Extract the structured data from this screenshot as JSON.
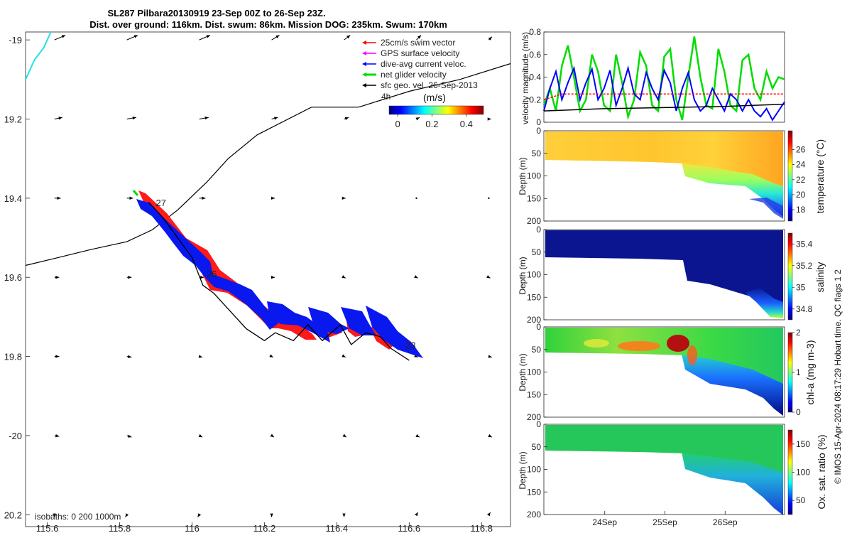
{
  "title": {
    "line1": "SL287 Pilbara20130919 23-Sep 00Z to 26-Sep 23Z.",
    "line2": "Dist. over ground: 116km. Dist. swum: 86km. Mission DOG: 235km. Swum: 170km"
  },
  "copyright": "© IMOS 15-Apr-2024 08:17:29 Hobart time. QC flags 1  2",
  "chart_data": [
    {
      "type": "scatter",
      "name": "glider-track-map",
      "xlim": [
        115.54,
        116.88
      ],
      "ylim": [
        -20.23,
        -18.98
      ],
      "x_ticks": [
        115.6,
        115.8,
        116,
        116.2,
        116.4,
        116.6,
        116.8
      ],
      "x_tick_labels": [
        "115.6",
        "115.8",
        "116",
        "116.2",
        "116.4",
        "116.6",
        "116.8"
      ],
      "y_ticks": [
        -19.0,
        -19.2,
        -19.4,
        -19.6,
        -19.8,
        -20.0,
        -20.2
      ],
      "y_tick_labels": [
        "-19",
        "19.2",
        "19.4",
        "19.6",
        "19.8",
        "-20",
        "20.2"
      ],
      "legend": [
        {
          "label": "25cm/s swim vector",
          "color": "#ff0000"
        },
        {
          "label": "GPS surface velocity",
          "color": "#ff00ff"
        },
        {
          "label": "dive-avg current veloc.",
          "color": "#0000ff"
        },
        {
          "label": "net glider velocity",
          "color": "#00dd00"
        },
        {
          "label": "sfc geo. vel. 26-Sep-2013",
          "color": "#000000"
        }
      ],
      "scale_label": "4h",
      "colorbar": {
        "label": "(m/s)",
        "ticks": [
          0,
          0.2,
          0.4
        ],
        "tick_labels": [
          "0",
          "0.2",
          "0.4"
        ],
        "range": [
          -0.05,
          0.5
        ]
      },
      "day_labels": [
        {
          "text": "27",
          "lon": 115.9,
          "lat": -19.42
        },
        {
          "text": "26",
          "lon": 116.04,
          "lat": -19.6
        },
        {
          "text": "23",
          "lon": 116.59,
          "lat": -19.78
        }
      ],
      "isobath_label": "isobaths: 0   200  1000m",
      "isobath": {
        "lon": [
          115.54,
          115.63,
          115.72,
          115.82,
          115.89,
          115.96,
          116.04,
          116.1,
          116.18,
          116.33,
          116.46,
          116.6,
          116.74,
          116.88
        ],
        "lat": [
          -19.57,
          -19.55,
          -19.53,
          -19.51,
          -19.48,
          -19.43,
          -19.36,
          -19.3,
          -19.24,
          -19.17,
          -19.17,
          -19.13,
          -19.1,
          -19.06
        ]
      },
      "coast": {
        "lon": [
          115.54,
          115.565,
          115.59,
          115.61
        ],
        "lat": [
          -19.1,
          -19.05,
          -19.02,
          -18.98
        ]
      },
      "track": {
        "lon": [
          116.6,
          116.55,
          116.52,
          116.48,
          116.44,
          116.41,
          116.36,
          116.32,
          116.28,
          116.23,
          116.2,
          116.15,
          116.1,
          116.06,
          116.03,
          116.0,
          115.96,
          115.92,
          115.88
        ],
        "lat": [
          -19.81,
          -19.78,
          -19.75,
          -19.74,
          -19.77,
          -19.72,
          -19.76,
          -19.72,
          -19.76,
          -19.74,
          -19.76,
          -19.73,
          -19.68,
          -19.64,
          -19.62,
          -19.55,
          -19.5,
          -19.45,
          -19.41
        ]
      },
      "current_arrows_grid": {
        "lon": [
          115.62,
          115.82,
          116.02,
          116.22,
          116.42,
          116.62,
          116.82
        ],
        "lat": [
          -19.0,
          -19.2,
          -19.4,
          -19.6,
          -19.8,
          -20.0,
          -20.2
        ],
        "u": [
          [
            0.14,
            0.14,
            0.14,
            0.1,
            0.08,
            0.06,
            0.04
          ],
          [
            0.1,
            0.12,
            0.12,
            0.08,
            0.06,
            0.04,
            0.03
          ],
          [
            0.08,
            0.08,
            0.08,
            0.04,
            0.02,
            0.0,
            0.0
          ],
          [
            0.06,
            0.06,
            0.06,
            0.04,
            0.02,
            0.02,
            0.02
          ],
          [
            0.06,
            0.06,
            0.04,
            0.02,
            0.02,
            0.02,
            0.04
          ],
          [
            0.06,
            0.06,
            0.04,
            0.03,
            0.03,
            0.04,
            0.04
          ],
          [
            0.0,
            -0.02,
            -0.02,
            0.0,
            0.0,
            0.02,
            0.02
          ]
        ],
        "v": [
          [
            0.06,
            0.06,
            0.06,
            0.06,
            0.06,
            0.06,
            0.04
          ],
          [
            0.02,
            0.02,
            0.02,
            0.02,
            0.02,
            0.02,
            0.0
          ],
          [
            0.0,
            0.0,
            0.0,
            0.0,
            0.0,
            0.0,
            0.0
          ],
          [
            0.0,
            0.0,
            0.0,
            0.0,
            -0.01,
            -0.01,
            -0.01
          ],
          [
            0.0,
            -0.01,
            -0.01,
            -0.01,
            -0.01,
            -0.01,
            -0.01
          ],
          [
            -0.01,
            -0.02,
            -0.02,
            -0.02,
            -0.02,
            -0.02,
            -0.02
          ],
          [
            -0.03,
            -0.03,
            -0.03,
            -0.03,
            -0.03,
            0.03,
            0.03
          ]
        ]
      }
    },
    {
      "type": "line",
      "name": "velocity-timeseries",
      "ylabel": "velocity magnitude (m/s)",
      "xlim": [
        0,
        4.0
      ],
      "ylim": [
        0,
        0.8
      ],
      "y_ticks": [
        0,
        0.2,
        0.4,
        0.6,
        0.8
      ],
      "y_tick_labels": [
        "0",
        "0.2",
        "0.4",
        "0.6",
        "0.8"
      ],
      "series": [
        {
          "color": "#00dd00",
          "x": [
            0.0,
            0.1,
            0.2,
            0.3,
            0.4,
            0.5,
            0.6,
            0.7,
            0.8,
            0.9,
            1.0,
            1.1,
            1.2,
            1.3,
            1.4,
            1.5,
            1.6,
            1.7,
            1.8,
            1.9,
            2.0,
            2.1,
            2.2,
            2.3,
            2.4,
            2.5,
            2.6,
            2.7,
            2.8,
            2.9,
            3.0,
            3.1,
            3.2,
            3.3,
            3.4,
            3.5,
            3.6,
            3.7,
            3.8,
            3.9,
            4.0
          ],
          "values": [
            0.15,
            0.3,
            0.1,
            0.5,
            0.68,
            0.4,
            0.1,
            0.2,
            0.6,
            0.45,
            0.15,
            0.1,
            0.6,
            0.35,
            0.05,
            0.2,
            0.62,
            0.5,
            0.15,
            0.1,
            0.58,
            0.65,
            0.2,
            0.02,
            0.4,
            0.76,
            0.4,
            0.15,
            0.12,
            0.65,
            0.45,
            0.15,
            0.1,
            0.55,
            0.6,
            0.3,
            0.2,
            0.45,
            0.3,
            0.4,
            0.38
          ]
        },
        {
          "color": "#0000ff",
          "x": [
            0.0,
            0.1,
            0.2,
            0.3,
            0.4,
            0.5,
            0.6,
            0.7,
            0.8,
            0.9,
            1.0,
            1.1,
            1.2,
            1.3,
            1.4,
            1.5,
            1.6,
            1.7,
            1.8,
            1.9,
            2.0,
            2.1,
            2.2,
            2.3,
            2.4,
            2.5,
            2.6,
            2.7,
            2.8,
            2.9,
            3.0,
            3.1,
            3.2,
            3.3,
            3.4,
            3.5,
            3.6,
            3.7,
            3.8,
            3.9,
            4.0
          ],
          "values": [
            0.1,
            0.3,
            0.45,
            0.2,
            0.35,
            0.48,
            0.2,
            0.35,
            0.47,
            0.2,
            0.3,
            0.46,
            0.15,
            0.3,
            0.48,
            0.25,
            0.2,
            0.44,
            0.3,
            0.2,
            0.46,
            0.35,
            0.1,
            0.3,
            0.44,
            0.2,
            0.1,
            0.15,
            0.3,
            0.2,
            0.1,
            0.25,
            0.2,
            0.1,
            0.2,
            0.1,
            0.05,
            0.12,
            0.02,
            0.1,
            0.18
          ]
        },
        {
          "color": "#ff0000",
          "x": [
            0.0,
            0.3,
            4.0
          ],
          "values": [
            0.2,
            0.25,
            0.25
          ]
        },
        {
          "color": "#000000",
          "x": [
            0.0,
            1.0,
            2.0,
            3.0,
            4.0
          ],
          "values": [
            0.1,
            0.12,
            0.13,
            0.14,
            0.16
          ]
        }
      ]
    },
    {
      "type": "heatmap",
      "name": "temperature-section",
      "xlabel": "",
      "ylabel": "Depth (m)",
      "x_ticks": [
        1.0,
        2.0,
        3.0
      ],
      "x_tick_labels": [
        "24Sep",
        "25Sep",
        "26Sep"
      ],
      "ylim": [
        0,
        200
      ],
      "y_ticks": [
        0,
        50,
        100,
        150,
        200
      ],
      "colorbar": {
        "label": "temperature (°C)",
        "range": [
          16.5,
          28.5
        ],
        "ticks": [
          18,
          20,
          22,
          24,
          26
        ],
        "tick_labels": [
          "18",
          "20",
          "22",
          "24",
          "26"
        ]
      }
    },
    {
      "type": "heatmap",
      "name": "salinity-section",
      "ylabel": "Depth (m)",
      "ylim": [
        0,
        200
      ],
      "y_ticks": [
        0,
        50,
        100,
        150,
        200
      ],
      "colorbar": {
        "label": "salinity",
        "range": [
          34.7,
          35.5
        ],
        "ticks": [
          34.8,
          35,
          35.2,
          35.4
        ],
        "tick_labels": [
          "34.8",
          "35",
          "35.2",
          "35.4"
        ]
      }
    },
    {
      "type": "heatmap",
      "name": "chla-section",
      "ylabel": "Depth (m)",
      "ylim": [
        0,
        200
      ],
      "y_ticks": [
        0,
        50,
        100,
        150,
        200
      ],
      "colorbar": {
        "label": "chl-a (mg m-3)",
        "range": [
          0,
          2
        ],
        "ticks": [
          0,
          1,
          2
        ],
        "tick_labels": [
          "0",
          "1",
          "2"
        ]
      }
    },
    {
      "type": "heatmap",
      "name": "oxygen-section",
      "ylabel": "Depth (m)",
      "ylim": [
        0,
        200
      ],
      "y_ticks": [
        0,
        50,
        100,
        150,
        200
      ],
      "colorbar": {
        "label": "Ox. sat. ratio (%)",
        "range": [
          25,
          175
        ],
        "ticks": [
          50,
          100,
          150
        ],
        "tick_labels": [
          "50",
          "100",
          "150"
        ]
      }
    }
  ]
}
